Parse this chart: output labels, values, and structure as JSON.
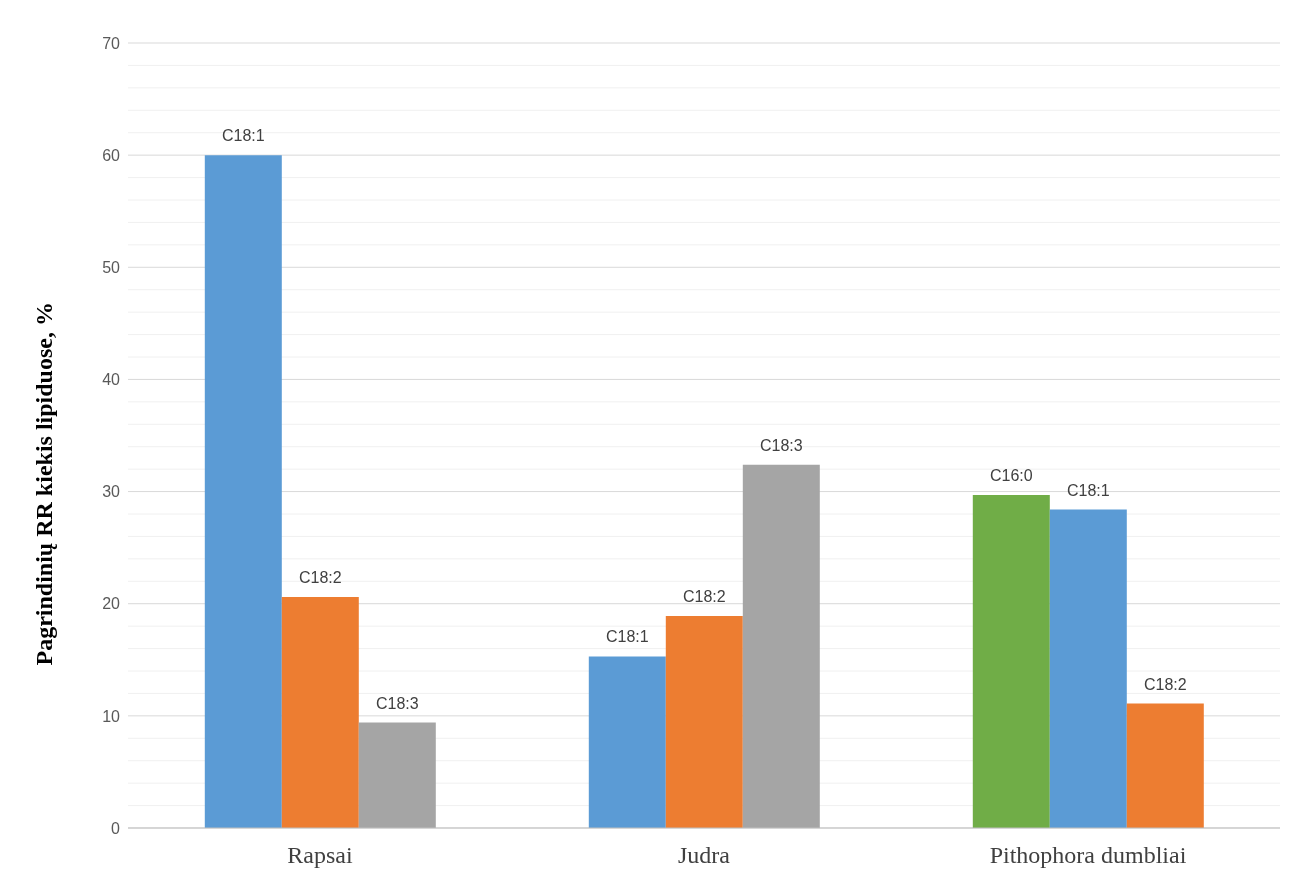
{
  "chart_data": {
    "type": "bar",
    "ylabel": "Pagrindinių RR kiekis lipiduose, %",
    "categories": [
      "Rapsai",
      "Judra",
      "Pithophora dumbliai"
    ],
    "series": [
      {
        "colors": [
          "#5b9bd5",
          "#5b9bd5",
          "#70ad47"
        ],
        "values": [
          60.0,
          15.3,
          29.7
        ],
        "value_labels": [
          "C18:1",
          "C18:1",
          "C16:0"
        ]
      },
      {
        "colors": [
          "#ed7d31",
          "#ed7d31",
          "#5b9bd5"
        ],
        "values": [
          20.6,
          18.9,
          28.4
        ],
        "value_labels": [
          "C18:2",
          "C18:2",
          "C18:1"
        ]
      },
      {
        "colors": [
          "#a5a5a5",
          "#a5a5a5",
          "#ed7d31"
        ],
        "values": [
          9.4,
          32.4,
          11.1
        ],
        "value_labels": [
          "C18:3",
          "C18:3",
          "C18:2"
        ]
      }
    ],
    "ylim": [
      0,
      70
    ],
    "yticks": [
      0,
      {
        "value": 2,
        "label": null
      },
      {
        "value": 4,
        "label": null
      },
      {
        "value": 6,
        "label": null
      },
      {
        "value": 8,
        "label": null
      },
      10,
      {
        "value": 12,
        "label": null
      },
      {
        "value": 14,
        "label": null
      },
      {
        "value": 16,
        "label": null
      },
      {
        "value": 18,
        "label": null
      },
      20,
      {
        "value": 22,
        "label": null
      },
      {
        "value": 24,
        "label": null
      },
      {
        "value": 26,
        "label": null
      },
      {
        "value": 28,
        "label": null
      },
      30,
      {
        "value": 32,
        "label": null
      },
      {
        "value": 34,
        "label": null
      },
      {
        "value": 36,
        "label": null
      },
      {
        "value": 38,
        "label": null
      },
      40,
      {
        "value": 42,
        "label": null
      },
      {
        "value": 44,
        "label": null
      },
      {
        "value": 46,
        "label": null
      },
      {
        "value": 48,
        "label": null
      },
      50,
      {
        "value": 52,
        "label": null
      },
      {
        "value": 54,
        "label": null
      },
      {
        "value": 56,
        "label": null
      },
      {
        "value": 58,
        "label": null
      },
      60,
      {
        "value": 62,
        "label": null
      },
      {
        "value": 64,
        "label": null
      },
      {
        "value": 66,
        "label": null
      },
      {
        "value": 68,
        "label": null
      },
      70
    ],
    "grid": true
  }
}
